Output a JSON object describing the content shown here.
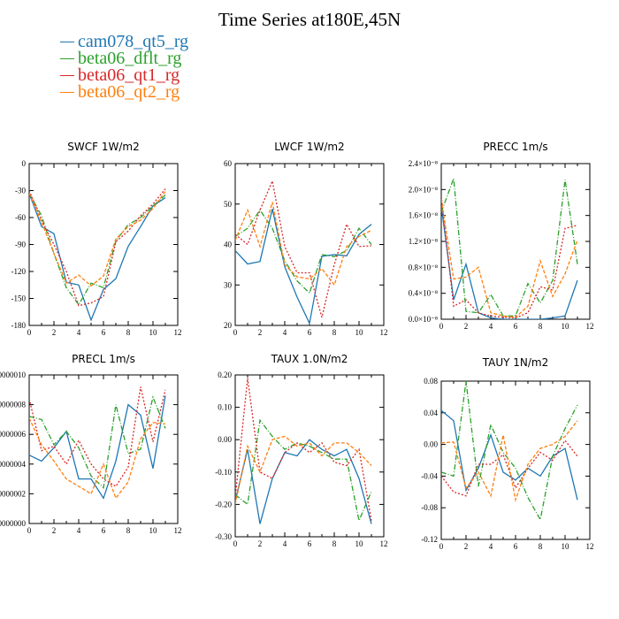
{
  "page_title": "Time Series at180E,45N",
  "legend": [
    {
      "label": "cam078_qt5_rg",
      "color": "#1f77b4"
    },
    {
      "label": "beta06_dflt_rg",
      "color": "#2ca02c"
    },
    {
      "label": "beta06_qt1_rg",
      "color": "#d62728"
    },
    {
      "label": "beta06_qt2_rg",
      "color": "#ff7f0e"
    }
  ],
  "chart_data": [
    {
      "type": "line",
      "title": "SWCF   1W/m2",
      "x": [
        0,
        1,
        2,
        3,
        4,
        5,
        6,
        7,
        8,
        9,
        10,
        11
      ],
      "xlim": [
        0,
        12
      ],
      "xticks": [
        "0",
        "2",
        "4",
        "6",
        "8",
        "10",
        "12"
      ],
      "ylim": [
        -180,
        0
      ],
      "yticks": [
        "-180",
        "-150",
        "-120",
        "-90",
        "-60",
        "-30",
        "0"
      ],
      "series": [
        {
          "name": "cam078_qt5_rg",
          "values": [
            -33,
            -70,
            -78,
            -132,
            -135,
            -174,
            -140,
            -128,
            -92,
            -70,
            -47,
            -38
          ]
        },
        {
          "name": "beta06_dflt_rg",
          "values": [
            -33,
            -58,
            -100,
            -138,
            -157,
            -133,
            -138,
            -86,
            -68,
            -60,
            -47,
            -35
          ]
        },
        {
          "name": "beta06_qt1_rg",
          "values": [
            -30,
            -63,
            -90,
            -120,
            -158,
            -155,
            -148,
            -87,
            -75,
            -58,
            -45,
            -28
          ]
        },
        {
          "name": "beta06_qt2_rg",
          "values": [
            -33,
            -65,
            -100,
            -133,
            -124,
            -136,
            -125,
            -84,
            -70,
            -63,
            -50,
            -31
          ]
        }
      ]
    },
    {
      "type": "line",
      "title": "LWCF   1W/m2",
      "x": [
        0,
        1,
        2,
        3,
        4,
        5,
        6,
        7,
        8,
        9,
        10,
        11
      ],
      "xlim": [
        0,
        12
      ],
      "xticks": [
        "0",
        "2",
        "4",
        "6",
        "8",
        "10",
        "12"
      ],
      "ylim": [
        20,
        60
      ],
      "yticks": [
        "20",
        "30",
        "40",
        "50",
        "60"
      ],
      "series": [
        {
          "name": "cam078_qt5_rg",
          "values": [
            38.5,
            35.2,
            35.8,
            48.8,
            34.5,
            27.0,
            20.5,
            37.1,
            37.5,
            37.2,
            42.5,
            45.0
          ]
        },
        {
          "name": "beta06_dflt_rg",
          "values": [
            42.0,
            44.0,
            48.5,
            44.0,
            36.0,
            31.0,
            28.0,
            37.5,
            37.0,
            38.5,
            44.0,
            40.0
          ]
        },
        {
          "name": "beta06_qt1_rg",
          "values": [
            42.5,
            40.0,
            48.5,
            55.7,
            39.5,
            33.0,
            33.0,
            22.0,
            35.0,
            45.0,
            39.5,
            39.7
          ]
        },
        {
          "name": "beta06_qt2_rg",
          "values": [
            41.0,
            48.5,
            39.5,
            50.5,
            35.0,
            32.0,
            31.5,
            34.0,
            30.0,
            39.5,
            42.0,
            43.5
          ]
        }
      ]
    },
    {
      "type": "line",
      "title": "PRECC   1m/s",
      "x": [
        0,
        1,
        2,
        3,
        4,
        5,
        6,
        7,
        8,
        9,
        10,
        11
      ],
      "xlim": [
        0,
        12
      ],
      "xticks": [
        "0",
        "2",
        "4",
        "6",
        "8",
        "10",
        "12"
      ],
      "ylim": [
        0,
        2.4
      ],
      "ytick_values": [
        0,
        0.4,
        0.8,
        1.2,
        1.6,
        2.0,
        2.4
      ],
      "yticks": [
        "0.0×10⁻⁸",
        "0.4×10⁻⁸",
        "0.8×10⁻⁸",
        "1.2×10⁻⁸",
        "1.6×10⁻⁸",
        "2.0×10⁻⁸",
        "2.4×10⁻⁸"
      ],
      "series": [
        {
          "name": "cam078_qt5_rg",
          "values": [
            1.75,
            0.3,
            0.85,
            0.1,
            0.02,
            0.0,
            0.0,
            0.0,
            0.0,
            0.02,
            0.05,
            0.6
          ]
        },
        {
          "name": "beta06_dflt_rg",
          "values": [
            1.65,
            2.17,
            0.12,
            0.1,
            0.38,
            0.05,
            0.05,
            0.55,
            0.25,
            0.6,
            2.15,
            0.85
          ]
        },
        {
          "name": "beta06_qt1_rg",
          "values": [
            1.9,
            0.2,
            0.3,
            0.1,
            0.05,
            0.03,
            0.02,
            0.1,
            0.5,
            0.45,
            1.4,
            1.45
          ]
        },
        {
          "name": "beta06_qt2_rg",
          "values": [
            1.85,
            0.62,
            0.65,
            0.8,
            0.1,
            0.05,
            0.03,
            0.2,
            0.9,
            0.35,
            0.7,
            1.22
          ]
        }
      ]
    },
    {
      "type": "line",
      "title": "PRECL   1m/s",
      "x": [
        0,
        1,
        2,
        3,
        4,
        5,
        6,
        7,
        8,
        9,
        10,
        11
      ],
      "xlim": [
        0,
        12
      ],
      "xticks": [
        "0",
        "2",
        "4",
        "6",
        "8",
        "10",
        "12"
      ],
      "ylim": [
        0,
        10
      ],
      "ytick_values": [
        0,
        2,
        4,
        6,
        8,
        10
      ],
      "yticks": [
        "0000000",
        "0000002",
        "0000004",
        "0000006",
        "0000008",
        "0000010"
      ],
      "series": [
        {
          "name": "cam078_qt5_rg",
          "values": [
            4.6,
            4.2,
            5.1,
            6.2,
            3.0,
            3.0,
            1.7,
            4.2,
            8.0,
            7.3,
            3.7,
            8.6
          ]
        },
        {
          "name": "beta06_dflt_rg",
          "values": [
            7.2,
            7.0,
            5.3,
            6.2,
            5.1,
            3.2,
            2.4,
            8.0,
            4.7,
            5.0,
            8.5,
            6.4
          ]
        },
        {
          "name": "beta06_qt1_rg",
          "values": [
            8.4,
            4.9,
            5.2,
            4.0,
            5.6,
            4.0,
            3.0,
            2.5,
            3.8,
            9.2,
            5.5,
            9.0
          ]
        },
        {
          "name": "beta06_qt2_rg",
          "values": [
            7.1,
            5.3,
            4.2,
            3.0,
            2.5,
            2.0,
            4.0,
            1.7,
            2.8,
            5.7,
            6.8,
            6.7
          ]
        }
      ]
    },
    {
      "type": "line",
      "title": "TAUX   1.0N/m2",
      "x": [
        0,
        1,
        2,
        3,
        4,
        5,
        6,
        7,
        8,
        9,
        10,
        11
      ],
      "xlim": [
        0,
        12
      ],
      "xticks": [
        "0",
        "2",
        "4",
        "6",
        "8",
        "10",
        "12"
      ],
      "ylim": [
        -0.3,
        0.2
      ],
      "yticks": [
        "-0.30",
        "-0.20",
        "-0.10",
        "0.00",
        "0.10",
        "0.20"
      ],
      "series": [
        {
          "name": "cam078_qt5_rg",
          "values": [
            -0.19,
            -0.03,
            -0.26,
            -0.12,
            -0.04,
            -0.05,
            0.0,
            -0.03,
            -0.05,
            -0.03,
            -0.12,
            -0.26
          ]
        },
        {
          "name": "beta06_dflt_rg",
          "values": [
            -0.17,
            -0.2,
            0.06,
            0.01,
            -0.03,
            -0.01,
            -0.02,
            -0.04,
            -0.06,
            -0.06,
            -0.25,
            -0.16
          ]
        },
        {
          "name": "beta06_qt1_rg",
          "values": [
            -0.18,
            0.19,
            -0.1,
            -0.12,
            -0.04,
            -0.01,
            -0.04,
            -0.01,
            -0.07,
            -0.08,
            -0.03,
            -0.25
          ]
        },
        {
          "name": "beta06_qt2_rg",
          "values": [
            -0.2,
            -0.02,
            -0.1,
            0.0,
            0.01,
            -0.02,
            -0.01,
            -0.05,
            -0.01,
            -0.01,
            -0.04,
            -0.08
          ]
        }
      ]
    },
    {
      "type": "line",
      "title": "TAUY   1N/m2",
      "x": [
        0,
        1,
        2,
        3,
        4,
        5,
        6,
        7,
        8,
        9,
        10,
        11
      ],
      "xlim": [
        0,
        12
      ],
      "xticks": [
        "0",
        "2",
        "4",
        "6",
        "8",
        "10",
        "12"
      ],
      "ylim": [
        -0.12,
        0.08
      ],
      "yticks": [
        "-0.12",
        "-0.08",
        "-0.04",
        "0.00",
        "0.04",
        "0.08"
      ],
      "series": [
        {
          "name": "cam078_qt5_rg",
          "values": [
            0.043,
            0.03,
            -0.058,
            -0.03,
            0.012,
            -0.035,
            -0.045,
            -0.03,
            -0.04,
            -0.015,
            -0.005,
            -0.07
          ]
        },
        {
          "name": "beta06_dflt_rg",
          "values": [
            -0.035,
            -0.04,
            0.08,
            -0.053,
            0.025,
            -0.01,
            -0.03,
            -0.067,
            -0.095,
            -0.015,
            0.02,
            0.05
          ]
        },
        {
          "name": "beta06_qt1_rg",
          "values": [
            -0.04,
            -0.06,
            -0.065,
            -0.025,
            -0.025,
            -0.013,
            -0.055,
            -0.03,
            -0.01,
            -0.02,
            0.005,
            -0.015
          ]
        },
        {
          "name": "beta06_qt2_rg",
          "values": [
            0.002,
            0.003,
            -0.055,
            -0.035,
            -0.065,
            0.012,
            -0.07,
            -0.025,
            -0.005,
            0.0,
            0.01,
            0.03
          ]
        }
      ]
    }
  ]
}
